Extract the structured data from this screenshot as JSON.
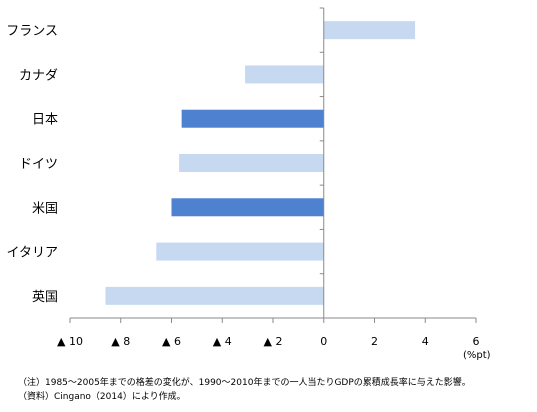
{
  "chart_data": {
    "type": "bar",
    "orientation": "horizontal",
    "categories": [
      "フランス",
      "カナダ",
      "日本",
      "ドイツ",
      "米国",
      "イタリア",
      "英国"
    ],
    "values": [
      3.6,
      -3.1,
      -5.6,
      -5.7,
      -6.0,
      -6.6,
      -8.6
    ],
    "highlight": [
      false,
      false,
      true,
      false,
      true,
      false,
      false
    ],
    "colors": {
      "normal": "#c6d9f1",
      "highlight": "#4f81d1"
    },
    "xlim": [
      -10,
      6
    ],
    "xticks": [
      -10,
      -8,
      -6,
      -4,
      -2,
      0,
      2,
      4,
      6
    ],
    "xtick_labels": [
      "▲ 10",
      "▲ 8",
      "▲ 6",
      "▲ 4",
      "▲ 2",
      "0",
      "2",
      "4",
      "6"
    ],
    "xunit": "(%pt)",
    "grid": false
  },
  "notes": {
    "note1": "（注）1985～2005年までの格差の変化が、1990～2010年までの一人当たりGDPの累積成長率に与えた影響。",
    "note2": "（資料）Cingano（2014）により作成。"
  }
}
